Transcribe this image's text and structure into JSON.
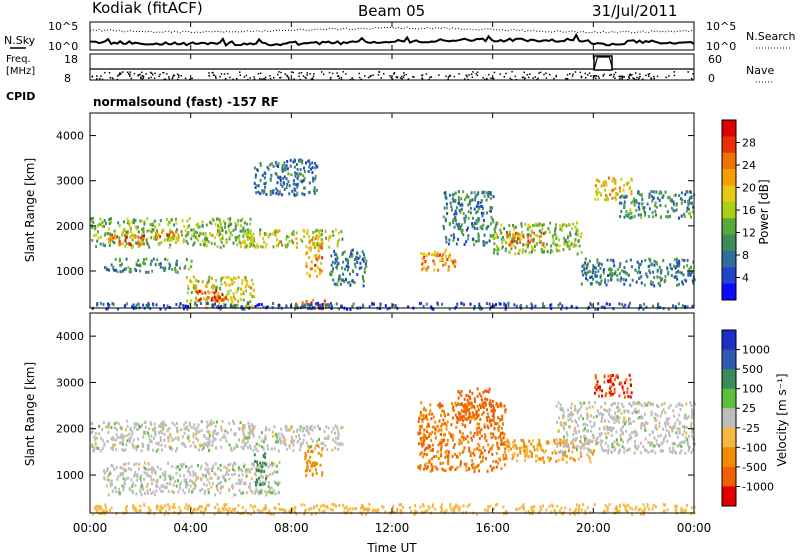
{
  "header": {
    "station": "Kodiak (fitACF)",
    "beam": "Beam 05",
    "date": "31/Jul/2011"
  },
  "noise_panel": {
    "left_label": "N.Sky",
    "right_label": "N.Search",
    "left_ticks": [
      "10^5",
      "10^0"
    ],
    "right_ticks": [
      "10^5",
      "10^0"
    ]
  },
  "freq_panel": {
    "left_label_1": "Freq.",
    "left_label_2": "[MHz]",
    "left_ticks": [
      "18",
      "8"
    ],
    "right_label": "Nave",
    "right_ticks": [
      "60",
      "0"
    ]
  },
  "cpid": {
    "label": "CPID",
    "text": "normalsound (fast) -157 RF"
  },
  "x_axis": {
    "label": "Time UT",
    "ticks": [
      "00:00",
      "04:00",
      "08:00",
      "12:00",
      "16:00",
      "20:00",
      "00:00"
    ]
  },
  "colors": {
    "power": [
      "#0a0aff",
      "#2244cc",
      "#2e6e9e",
      "#3f8c5a",
      "#5aa83a",
      "#a8d018",
      "#e8c810",
      "#f5a000",
      "#f07000",
      "#e83000",
      "#e00000"
    ],
    "velocity": [
      "#e00000",
      "#f06000",
      "#f08c00",
      "#f5b840",
      "#bdbdbd",
      "#5cc03a",
      "#3a8a5a",
      "#2e5ab0",
      "#1a2fc8"
    ]
  },
  "chart_data": [
    {
      "type": "heatmap",
      "title": "",
      "xlabel": "Time UT",
      "ylabel": "Slant Range [km]",
      "xlim": [
        0,
        24
      ],
      "ylim": [
        180,
        4500
      ],
      "y_ticks": [
        "1000",
        "2000",
        "3000",
        "4000"
      ],
      "colorbar": {
        "label": "Power [dB]",
        "range": [
          0,
          32
        ],
        "ticks": [
          "4",
          "8",
          "12",
          "16",
          "20",
          "24",
          "28"
        ]
      },
      "regions": [
        {
          "t0": 0.0,
          "t1": 6.5,
          "r0": 1550,
          "r1": 2200,
          "value": 14
        },
        {
          "t0": 0.7,
          "t1": 2.2,
          "r0": 1600,
          "r1": 1900,
          "value": 25
        },
        {
          "t0": 2.5,
          "t1": 3.5,
          "r0": 1650,
          "r1": 1900,
          "value": 22
        },
        {
          "t0": 0.5,
          "t1": 4.0,
          "r0": 1000,
          "r1": 1300,
          "value": 10
        },
        {
          "t0": 3.8,
          "t1": 6.5,
          "r0": 200,
          "r1": 900,
          "value": 18
        },
        {
          "t0": 4.2,
          "t1": 5.5,
          "r0": 350,
          "r1": 600,
          "value": 29
        },
        {
          "t0": 6.0,
          "t1": 10.0,
          "r0": 1550,
          "r1": 1950,
          "value": 16
        },
        {
          "t0": 8.5,
          "t1": 9.2,
          "r0": 900,
          "r1": 1750,
          "value": 22
        },
        {
          "t0": 8.0,
          "t1": 9.5,
          "r0": 200,
          "r1": 400,
          "value": 26
        },
        {
          "t0": 6.5,
          "t1": 9.0,
          "r0": 2700,
          "r1": 3500,
          "value": 8
        },
        {
          "t0": 9.5,
          "t1": 11.0,
          "r0": 700,
          "r1": 1500,
          "value": 8
        },
        {
          "t0": 13.0,
          "t1": 14.5,
          "r0": 1050,
          "r1": 1500,
          "value": 22
        },
        {
          "t0": 14.0,
          "t1": 16.0,
          "r0": 1600,
          "r1": 2800,
          "value": 9
        },
        {
          "t0": 16.0,
          "t1": 19.5,
          "r0": 1400,
          "r1": 2100,
          "value": 14
        },
        {
          "t0": 16.5,
          "t1": 18.0,
          "r0": 1600,
          "r1": 1900,
          "value": 24
        },
        {
          "t0": 19.5,
          "t1": 24.0,
          "r0": 700,
          "r1": 1300,
          "value": 9
        },
        {
          "t0": 20.0,
          "t1": 21.5,
          "r0": 2600,
          "r1": 3100,
          "value": 20
        },
        {
          "t0": 21.0,
          "t1": 24.0,
          "r0": 2200,
          "r1": 2800,
          "value": 10
        },
        {
          "t0": 0.0,
          "t1": 24.0,
          "r0": 180,
          "r1": 320,
          "value": 6
        }
      ]
    },
    {
      "type": "heatmap",
      "title": "",
      "xlabel": "Time UT",
      "ylabel": "Slant Range [km]",
      "xlim": [
        0,
        24
      ],
      "ylim": [
        180,
        4500
      ],
      "y_ticks": [
        "1000",
        "2000",
        "3000",
        "4000"
      ],
      "colorbar": {
        "label": "Velocity [m s⁻¹]",
        "ticks": [
          "1000",
          "500",
          "100",
          "25",
          "-25",
          "-100",
          "-500",
          "-1000"
        ]
      },
      "regions": [
        {
          "t0": 0.0,
          "t1": 6.5,
          "r0": 1550,
          "r1": 2200,
          "value": 0
        },
        {
          "t0": 6.0,
          "t1": 10.0,
          "r0": 1550,
          "r1": 2100,
          "value": 0
        },
        {
          "t0": 0.5,
          "t1": 7.5,
          "r0": 600,
          "r1": 1300,
          "value": 0
        },
        {
          "t0": 8.5,
          "t1": 9.2,
          "r0": 1000,
          "r1": 1700,
          "value": -150
        },
        {
          "t0": 6.5,
          "t1": 7.0,
          "r0": 800,
          "r1": 1500,
          "value": 120
        },
        {
          "t0": 13.0,
          "t1": 16.5,
          "r0": 1100,
          "r1": 2600,
          "value": -300
        },
        {
          "t0": 14.5,
          "t1": 16.0,
          "r0": 2200,
          "r1": 2900,
          "value": -400
        },
        {
          "t0": 16.5,
          "t1": 20.0,
          "r0": 1300,
          "r1": 1800,
          "value": -100
        },
        {
          "t0": 20.0,
          "t1": 21.5,
          "r0": 2700,
          "r1": 3200,
          "value": -700
        },
        {
          "t0": 18.5,
          "t1": 24.0,
          "r0": 1500,
          "r1": 2600,
          "value": 0
        },
        {
          "t0": 0.0,
          "t1": 24.0,
          "r0": 180,
          "r1": 400,
          "value": -60
        }
      ]
    }
  ]
}
